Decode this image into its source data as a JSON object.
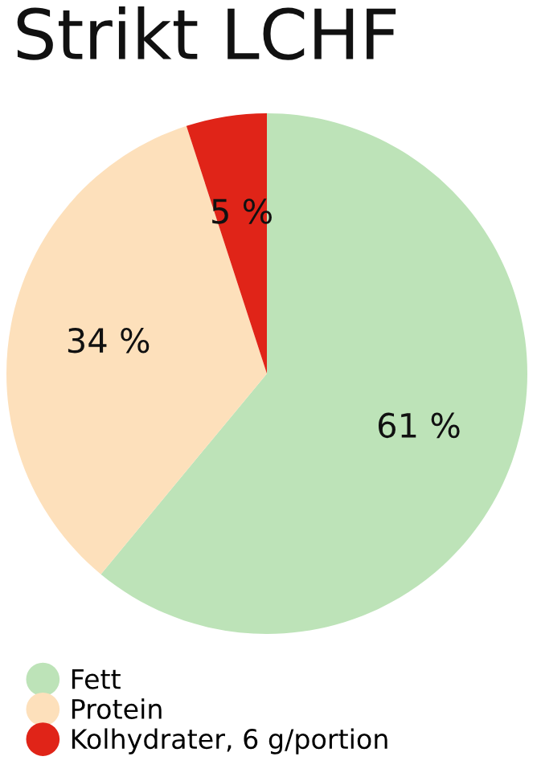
{
  "chart_data": {
    "type": "pie",
    "title": "Strikt LCHF",
    "categories": [
      "Fett",
      "Protein",
      "Kolhydrater, 6 g/portion"
    ],
    "values": [
      61,
      34,
      5
    ],
    "colors": [
      "#bde3b8",
      "#fde0bb",
      "#e02418"
    ],
    "value_labels": [
      "61 %",
      "34 %",
      "5 %"
    ],
    "legend": "bottom left"
  }
}
